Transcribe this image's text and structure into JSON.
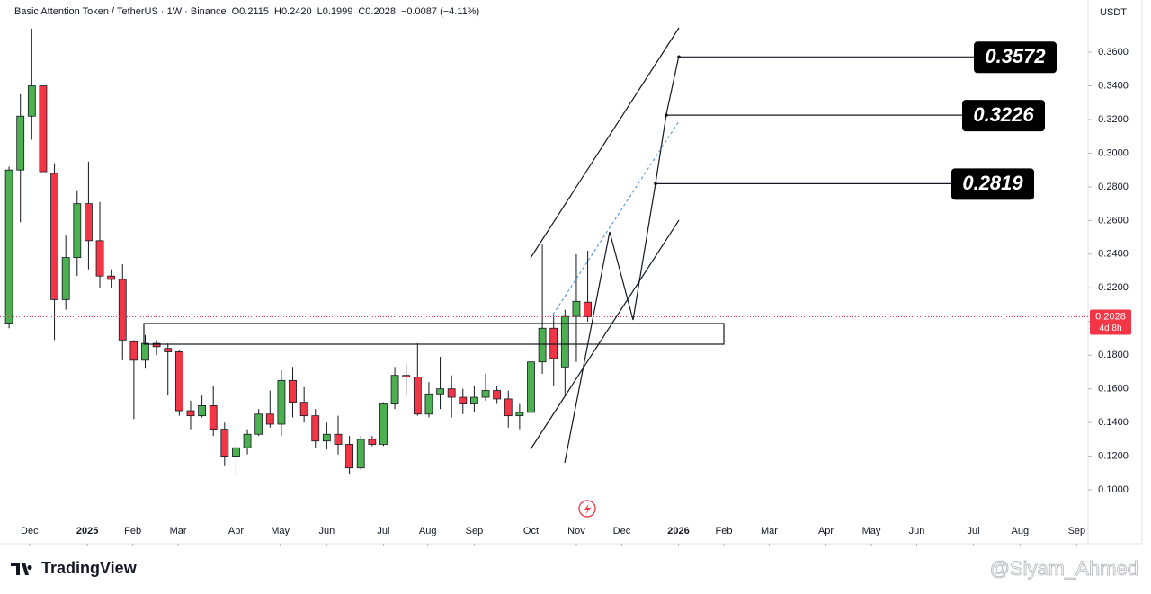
{
  "chart_data": {
    "type": "candlestick",
    "title": "Basic Attention Token / TetherUS · 1W · Binance",
    "ohlc_text": [
      "O0.2115",
      "H0.2420",
      "L0.1999",
      "C0.2028",
      "−0.0087 (−4.11%)"
    ],
    "currency": "USDT",
    "categories": [
      null,
      null,
      null,
      null,
      null,
      null,
      null,
      null,
      null,
      null,
      null,
      null,
      null,
      null,
      null,
      null,
      null,
      null,
      null,
      null,
      null,
      null,
      null,
      null,
      null,
      null,
      null,
      null,
      null,
      null,
      null,
      null,
      null,
      null,
      null,
      null,
      null,
      null,
      null,
      null,
      null,
      null,
      null,
      null,
      null,
      null,
      null,
      null,
      null,
      null,
      null,
      null
    ],
    "open": [
      0.199,
      0.29,
      0.322,
      0.34,
      0.288,
      0.213,
      0.238,
      0.27,
      0.248,
      0.227,
      0.225,
      0.188,
      0.177,
      0.187,
      0.184,
      0.182,
      0.147,
      0.144,
      0.15,
      0.136,
      0.12,
      0.125,
      0.133,
      0.145,
      0.139,
      0.165,
      0.152,
      0.144,
      0.129,
      0.133,
      0.127,
      0.113,
      0.13,
      0.127,
      0.151,
      0.168,
      0.167,
      0.145,
      0.157,
      0.16,
      0.155,
      0.151,
      0.155,
      0.159,
      0.154,
      0.144,
      0.146,
      0.176,
      0.196,
      0.173,
      0.203,
      0.2115
    ],
    "high": [
      0.292,
      0.335,
      0.374,
      0.34,
      0.294,
      0.251,
      0.278,
      0.295,
      0.271,
      0.231,
      0.234,
      0.189,
      0.192,
      0.189,
      0.187,
      0.183,
      0.153,
      0.156,
      0.162,
      0.14,
      0.129,
      0.136,
      0.148,
      0.159,
      0.171,
      0.173,
      0.161,
      0.148,
      0.14,
      0.144,
      0.132,
      0.132,
      0.132,
      0.152,
      0.173,
      0.175,
      0.187,
      0.164,
      0.179,
      0.168,
      0.16,
      0.162,
      0.169,
      0.162,
      0.159,
      0.151,
      0.178,
      0.246,
      0.204,
      0.207,
      0.24,
      0.242
    ],
    "low": [
      0.196,
      0.259,
      0.308,
      0.289,
      0.189,
      0.207,
      0.227,
      0.231,
      0.22,
      0.22,
      0.177,
      0.142,
      0.172,
      0.18,
      0.156,
      0.144,
      0.136,
      0.143,
      0.132,
      0.114,
      0.108,
      0.121,
      0.132,
      0.137,
      0.132,
      0.143,
      0.14,
      0.125,
      0.124,
      0.121,
      0.109,
      0.112,
      0.126,
      0.126,
      0.148,
      0.156,
      0.144,
      0.143,
      0.148,
      0.143,
      0.145,
      0.146,
      0.153,
      0.151,
      0.137,
      0.136,
      0.136,
      0.169,
      0.162,
      0.156,
      0.176,
      0.1999
    ],
    "close": [
      0.29,
      0.322,
      0.34,
      0.289,
      0.213,
      0.238,
      0.27,
      0.248,
      0.227,
      0.225,
      0.189,
      0.177,
      0.187,
      0.185,
      0.182,
      0.147,
      0.144,
      0.15,
      0.136,
      0.12,
      0.125,
      0.133,
      0.145,
      0.139,
      0.165,
      0.152,
      0.144,
      0.129,
      0.133,
      0.127,
      0.113,
      0.13,
      0.127,
      0.151,
      0.168,
      0.167,
      0.145,
      0.157,
      0.16,
      0.155,
      0.151,
      0.155,
      0.159,
      0.154,
      0.144,
      0.146,
      0.176,
      0.196,
      0.178,
      0.203,
      0.212,
      0.2028
    ],
    "up_color": "#4caf50",
    "down_color": "#f23645",
    "xlim": [
      -0.8,
      95.1
    ],
    "xticks": [
      {
        "value": 1.8,
        "label": "Dec"
      },
      {
        "value": 6.9,
        "label": "2025"
      },
      {
        "value": 10.9,
        "label": "Feb"
      },
      {
        "value": 14.9,
        "label": "Mar"
      },
      {
        "value": 20.0,
        "label": "Apr"
      },
      {
        "value": 23.9,
        "label": "May"
      },
      {
        "value": 28.0,
        "label": "Jun"
      },
      {
        "value": 33.0,
        "label": "Jul"
      },
      {
        "value": 36.9,
        "label": "Aug"
      },
      {
        "value": 41.0,
        "label": "Sep"
      },
      {
        "value": 46.0,
        "label": "Oct"
      },
      {
        "value": 50.0,
        "label": "Nov"
      },
      {
        "value": 54.0,
        "label": "Dec"
      },
      {
        "value": 59.0,
        "label": "2026"
      },
      {
        "value": 63.0,
        "label": "Feb"
      },
      {
        "value": 67.0,
        "label": "Mar"
      },
      {
        "value": 72.0,
        "label": "Apr"
      },
      {
        "value": 76.0,
        "label": "May"
      },
      {
        "value": 80.0,
        "label": "Jun"
      },
      {
        "value": 85.0,
        "label": "Jul"
      },
      {
        "value": 89.1,
        "label": "Aug"
      },
      {
        "value": 94.1,
        "label": "Sep"
      }
    ],
    "ylim": [
      0.068,
      0.391
    ],
    "yticks": [
      {
        "value": 0.1,
        "label": "0.1000"
      },
      {
        "value": 0.12,
        "label": "0.1200"
      },
      {
        "value": 0.14,
        "label": "0.1400"
      },
      {
        "value": 0.16,
        "label": "0.1600"
      },
      {
        "value": 0.18,
        "label": "0.1800"
      },
      {
        "value": 0.2,
        "label": "0.2000"
      },
      {
        "value": 0.22,
        "label": "0.2200"
      },
      {
        "value": 0.24,
        "label": "0.2400"
      },
      {
        "value": 0.26,
        "label": "0.2600"
      },
      {
        "value": 0.28,
        "label": "0.2800"
      },
      {
        "value": 0.3,
        "label": "0.3000"
      },
      {
        "value": 0.32,
        "label": "0.3200"
      },
      {
        "value": 0.34,
        "label": "0.3400"
      },
      {
        "value": 0.36,
        "label": "0.3600"
      }
    ],
    "current_price": {
      "value": 0.2028,
      "label": "0.2028"
    },
    "countdown": "4d 8h",
    "targets": [
      {
        "value": 0.3572,
        "label": "0.3572"
      },
      {
        "value": 0.3226,
        "label": "0.3226"
      },
      {
        "value": 0.2819,
        "label": "0.2819"
      }
    ],
    "brand": "TradingView",
    "watermark": "@Siyam_Ahmed"
  }
}
